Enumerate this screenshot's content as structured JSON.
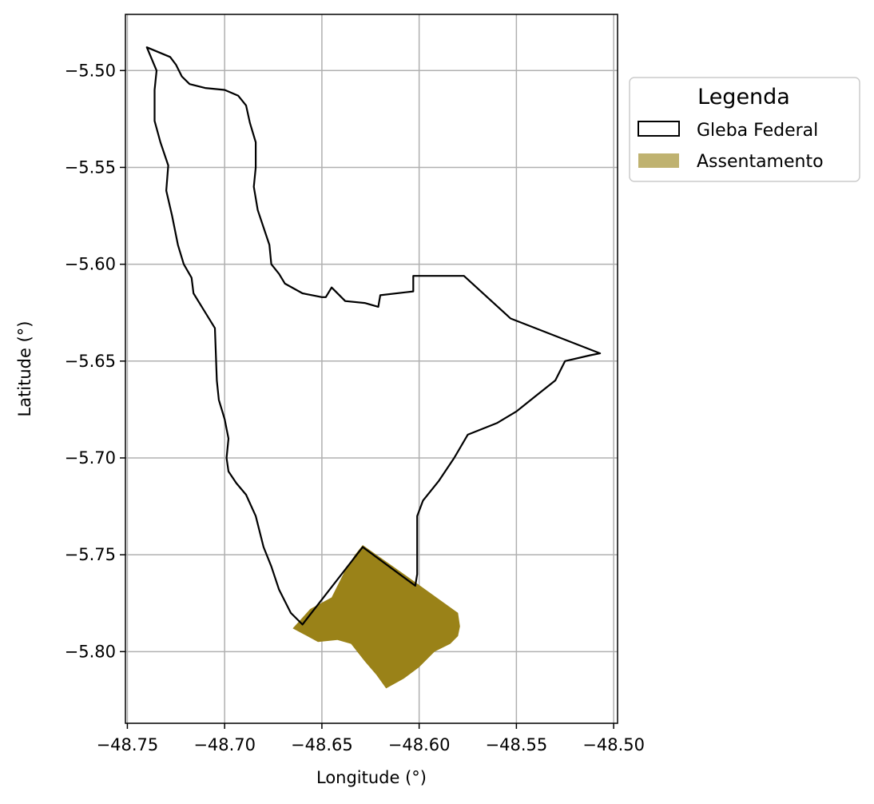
{
  "chart_data": {
    "type": "map",
    "xlabel": "Longitude (°)",
    "ylabel": "Latitude (°)",
    "xlim": [
      -48.751,
      -48.498
    ],
    "ylim": [
      -5.837,
      -5.471
    ],
    "xticks": [
      -48.75,
      -48.7,
      -48.65,
      -48.6,
      -48.55,
      -48.5
    ],
    "xtick_labels": [
      "−48.75",
      "−48.70",
      "−48.65",
      "−48.60",
      "−48.55",
      "−48.50"
    ],
    "yticks": [
      -5.5,
      -5.55,
      -5.6,
      -5.65,
      -5.7,
      -5.75,
      -5.8
    ],
    "ytick_labels": [
      "−5.50",
      "−5.55",
      "−5.60",
      "−5.65",
      "−5.70",
      "−5.75",
      "−5.80"
    ],
    "grid": true,
    "legend": {
      "title": "Legenda",
      "placement": "outside-top-right",
      "entries": [
        {
          "name": "Gleba Federal",
          "style": "outline",
          "edge_color": "#000000",
          "fill": "none"
        },
        {
          "name": "Assentamento",
          "style": "filled",
          "fill": "#9a8218",
          "swatch_color": "#bfb270"
        }
      ]
    },
    "series": [
      {
        "name": "Gleba Federal",
        "geometry": "polygon",
        "stroke": "#000000",
        "fill": "none",
        "coordinates": [
          [
            -48.74,
            -5.488
          ],
          [
            -48.728,
            -5.493
          ],
          [
            -48.725,
            -5.497
          ],
          [
            -48.722,
            -5.503
          ],
          [
            -48.718,
            -5.507
          ],
          [
            -48.71,
            -5.509
          ],
          [
            -48.7,
            -5.51
          ],
          [
            -48.693,
            -5.513
          ],
          [
            -48.689,
            -5.518
          ],
          [
            -48.687,
            -5.527
          ],
          [
            -48.684,
            -5.537
          ],
          [
            -48.684,
            -5.55
          ],
          [
            -48.685,
            -5.56
          ],
          [
            -48.683,
            -5.572
          ],
          [
            -48.68,
            -5.581
          ],
          [
            -48.677,
            -5.59
          ],
          [
            -48.676,
            -5.6
          ],
          [
            -48.672,
            -5.605
          ],
          [
            -48.669,
            -5.61
          ],
          [
            -48.66,
            -5.615
          ],
          [
            -48.65,
            -5.617
          ],
          [
            -48.648,
            -5.617
          ],
          [
            -48.645,
            -5.612
          ],
          [
            -48.638,
            -5.619
          ],
          [
            -48.628,
            -5.62
          ],
          [
            -48.621,
            -5.622
          ],
          [
            -48.62,
            -5.616
          ],
          [
            -48.603,
            -5.614
          ],
          [
            -48.603,
            -5.606
          ],
          [
            -48.577,
            -5.606
          ],
          [
            -48.553,
            -5.628
          ],
          [
            -48.507,
            -5.646
          ],
          [
            -48.512,
            -5.647
          ],
          [
            -48.525,
            -5.65
          ],
          [
            -48.53,
            -5.66
          ],
          [
            -48.54,
            -5.668
          ],
          [
            -48.55,
            -5.676
          ],
          [
            -48.56,
            -5.682
          ],
          [
            -48.575,
            -5.688
          ],
          [
            -48.582,
            -5.7
          ],
          [
            -48.59,
            -5.712
          ],
          [
            -48.598,
            -5.722
          ],
          [
            -48.601,
            -5.73
          ],
          [
            -48.601,
            -5.745
          ],
          [
            -48.601,
            -5.76
          ],
          [
            -48.602,
            -5.766
          ],
          [
            -48.629,
            -5.746
          ],
          [
            -48.66,
            -5.786
          ],
          [
            -48.666,
            -5.78
          ],
          [
            -48.672,
            -5.768
          ],
          [
            -48.676,
            -5.756
          ],
          [
            -48.68,
            -5.746
          ],
          [
            -48.684,
            -5.73
          ],
          [
            -48.689,
            -5.719
          ],
          [
            -48.694,
            -5.713
          ],
          [
            -48.698,
            -5.707
          ],
          [
            -48.699,
            -5.7
          ],
          [
            -48.698,
            -5.69
          ],
          [
            -48.7,
            -5.68
          ],
          [
            -48.703,
            -5.67
          ],
          [
            -48.704,
            -5.66
          ],
          [
            -48.705,
            -5.633
          ],
          [
            -48.716,
            -5.615
          ],
          [
            -48.717,
            -5.607
          ],
          [
            -48.721,
            -5.6
          ],
          [
            -48.724,
            -5.59
          ],
          [
            -48.727,
            -5.575
          ],
          [
            -48.73,
            -5.562
          ],
          [
            -48.729,
            -5.549
          ],
          [
            -48.733,
            -5.537
          ],
          [
            -48.736,
            -5.526
          ],
          [
            -48.736,
            -5.51
          ],
          [
            -48.735,
            -5.5
          ],
          [
            -48.74,
            -5.488
          ]
        ]
      },
      {
        "name": "Assentamento",
        "geometry": "polygon",
        "stroke": "none",
        "fill": "#9a8218",
        "coordinates": [
          [
            -48.629,
            -5.745
          ],
          [
            -48.605,
            -5.762
          ],
          [
            -48.58,
            -5.78
          ],
          [
            -48.579,
            -5.787
          ],
          [
            -48.58,
            -5.792
          ],
          [
            -48.584,
            -5.796
          ],
          [
            -48.592,
            -5.8
          ],
          [
            -48.6,
            -5.808
          ],
          [
            -48.608,
            -5.814
          ],
          [
            -48.617,
            -5.819
          ],
          [
            -48.622,
            -5.812
          ],
          [
            -48.628,
            -5.805
          ],
          [
            -48.635,
            -5.796
          ],
          [
            -48.642,
            -5.794
          ],
          [
            -48.652,
            -5.795
          ],
          [
            -48.665,
            -5.788
          ],
          [
            -48.656,
            -5.778
          ],
          [
            -48.645,
            -5.772
          ],
          [
            -48.638,
            -5.758
          ],
          [
            -48.633,
            -5.75
          ],
          [
            -48.629,
            -5.745
          ]
        ]
      }
    ]
  }
}
